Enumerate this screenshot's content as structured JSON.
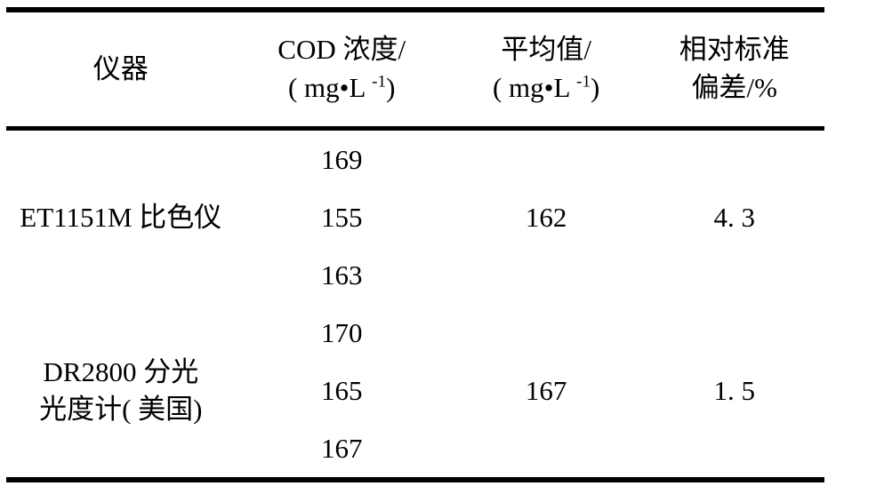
{
  "table": {
    "header": {
      "col1": "仪器",
      "col2": {
        "title": "COD 浓度/",
        "unit_pre": "( mg•L ",
        "unit_sup": "-1",
        "unit_post": ")"
      },
      "col3": {
        "title": "平均值/",
        "unit_pre": "( mg•L ",
        "unit_sup": "-1",
        "unit_post": ")"
      },
      "col4": {
        "title": "相对标准",
        "title2": "偏差/%"
      }
    },
    "groups": [
      {
        "name_lines": [
          "ET1151M 比色仪"
        ],
        "values": [
          "169",
          "155",
          "163"
        ],
        "mean": "162",
        "rsd": "4. 3"
      },
      {
        "name_lines": [
          "DR2800 分光",
          "光度计( 美国)"
        ],
        "values": [
          "170",
          "165",
          "167"
        ],
        "mean": "167",
        "rsd": "1. 5"
      }
    ]
  },
  "chart_data": {
    "type": "table",
    "columns": [
      "仪器",
      "COD 浓度/( mg·L⁻¹)",
      "平均值/( mg·L⁻¹)",
      "相对标准偏差/%"
    ],
    "series": [
      {
        "name": "ET1151M 比色仪",
        "cod_values": [
          169,
          155,
          163
        ],
        "mean": 162,
        "rsd_percent": 4.3
      },
      {
        "name": "DR2800 分光光度计( 美国)",
        "cod_values": [
          170,
          165,
          167
        ],
        "mean": 167,
        "rsd_percent": 1.5
      }
    ]
  },
  "colors": {
    "text": "#000000",
    "rule": "#000000",
    "background": "#ffffff"
  }
}
